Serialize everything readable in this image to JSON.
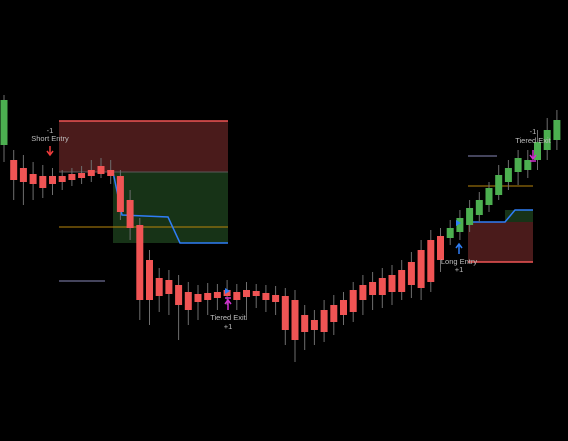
{
  "chart_data": {
    "type": "candlestick",
    "up_color": "#4caf50",
    "down_color": "#f05454",
    "wick_color": "#6e6e6e",
    "ylim": [
      0,
      441
    ],
    "open": [
      296,
      281,
      273,
      267,
      265,
      265,
      265,
      267,
      268,
      271,
      275,
      271,
      265,
      241,
      216,
      181,
      163,
      161,
      156,
      149,
      147,
      148,
      149,
      151,
      149,
      151,
      150,
      148,
      146,
      145,
      141,
      126,
      121,
      131,
      136,
      141,
      151,
      156,
      159,
      163,
      166,
      171,
      179,
      191,
      201,
      205,
      203,
      209,
      216,
      226,
      236,
      246,
      259,
      269,
      271,
      281,
      291,
      301
    ],
    "high": [
      346,
      291,
      286,
      279,
      276,
      273,
      271,
      273,
      275,
      281,
      283,
      281,
      271,
      251,
      223,
      191,
      173,
      171,
      166,
      159,
      156,
      158,
      157,
      161,
      157,
      159,
      157,
      156,
      155,
      153,
      151,
      136,
      131,
      141,
      146,
      149,
      159,
      166,
      169,
      173,
      176,
      181,
      189,
      201,
      211,
      213,
      221,
      231,
      241,
      249,
      259,
      276,
      281,
      291,
      291,
      311,
      323,
      331
    ],
    "low": [
      279,
      241,
      236,
      241,
      243,
      246,
      251,
      255,
      257,
      259,
      263,
      257,
      221,
      201,
      121,
      116,
      129,
      126,
      101,
      116,
      121,
      126,
      131,
      136,
      131,
      121,
      133,
      129,
      126,
      96,
      79,
      91,
      96,
      99,
      106,
      116,
      119,
      126,
      131,
      133,
      136,
      141,
      143,
      141,
      149,
      169,
      196,
      201,
      209,
      219,
      229,
      241,
      251,
      256,
      263,
      271,
      281,
      291
    ],
    "close": [
      341,
      261,
      259,
      257,
      253,
      257,
      259,
      261,
      263,
      265,
      267,
      265,
      229,
      213,
      141,
      141,
      145,
      147,
      136,
      131,
      139,
      141,
      143,
      145,
      141,
      144,
      145,
      141,
      139,
      111,
      101,
      109,
      111,
      109,
      119,
      126,
      129,
      141,
      146,
      146,
      149,
      149,
      156,
      153,
      159,
      181,
      213,
      223,
      233,
      241,
      253,
      266,
      273,
      283,
      281,
      299,
      311,
      321
    ],
    "annotations": [
      "-1",
      "Short Entry",
      "Tiered Exit",
      "+1",
      "Long Entry",
      "+1",
      "-1",
      "Tiered Exit"
    ]
  }
}
